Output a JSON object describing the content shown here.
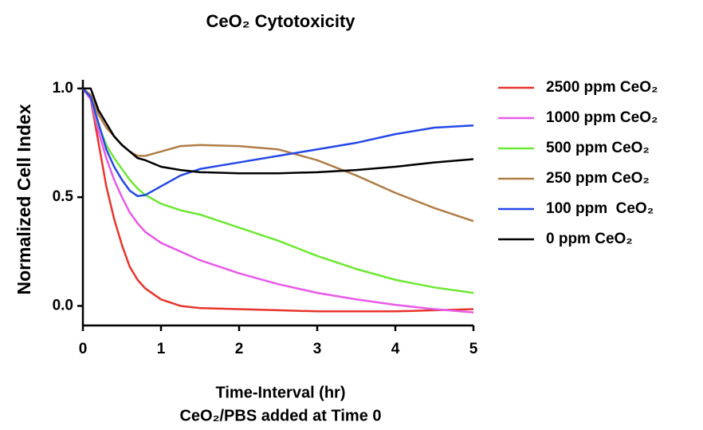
{
  "chart_data": {
    "type": "line",
    "title": "CeO₂ Cytotoxicity",
    "xlabel": [
      "Time-Interval (hr)",
      "CeO₂/PBS added at Time 0"
    ],
    "ylabel": "Normalized Cell Index",
    "x": [
      0,
      0.1,
      0.2,
      0.3,
      0.4,
      0.5,
      0.6,
      0.7,
      0.8,
      1.0,
      1.25,
      1.5,
      2,
      2.5,
      3,
      3.5,
      4,
      4.5,
      5
    ],
    "series": [
      {
        "name": "2500 ppm CeO₂",
        "color": "#e8352b",
        "values": [
          1.0,
          0.95,
          0.75,
          0.55,
          0.4,
          0.28,
          0.18,
          0.12,
          0.08,
          0.03,
          0.0,
          -0.01,
          -0.015,
          -0.02,
          -0.025,
          -0.025,
          -0.025,
          -0.02,
          -0.015
        ]
      },
      {
        "name": "1000 ppm CeO₂",
        "color": "#e85ae8",
        "values": [
          1.0,
          0.95,
          0.8,
          0.68,
          0.58,
          0.5,
          0.43,
          0.38,
          0.34,
          0.29,
          0.25,
          0.21,
          0.15,
          0.1,
          0.06,
          0.03,
          0.005,
          -0.015,
          -0.03
        ]
      },
      {
        "name": "500 ppm CeO₂",
        "color": "#6de832",
        "values": [
          1.0,
          0.96,
          0.83,
          0.74,
          0.68,
          0.63,
          0.58,
          0.54,
          0.51,
          0.47,
          0.44,
          0.42,
          0.36,
          0.3,
          0.23,
          0.17,
          0.12,
          0.085,
          0.06
        ]
      },
      {
        "name": "250 ppm CeO₂",
        "color": "#b07d48",
        "values": [
          1.0,
          0.97,
          0.88,
          0.82,
          0.78,
          0.74,
          0.71,
          0.69,
          0.69,
          0.71,
          0.735,
          0.74,
          0.735,
          0.72,
          0.67,
          0.6,
          0.52,
          0.45,
          0.39
        ]
      },
      {
        "name": "100 ppm  CeO₂",
        "color": "#2448e8",
        "values": [
          1.0,
          0.96,
          0.84,
          0.72,
          0.64,
          0.58,
          0.53,
          0.505,
          0.51,
          0.55,
          0.6,
          0.63,
          0.66,
          0.69,
          0.72,
          0.75,
          0.79,
          0.82,
          0.83
        ]
      },
      {
        "name": "0 ppm CeO₂",
        "color": "#000000",
        "values": [
          1.0,
          1.0,
          0.9,
          0.84,
          0.78,
          0.74,
          0.71,
          0.68,
          0.67,
          0.64,
          0.625,
          0.615,
          0.61,
          0.61,
          0.615,
          0.625,
          0.64,
          0.66,
          0.675
        ]
      }
    ],
    "xlim": [
      0,
      5
    ],
    "xticks": [
      0,
      1,
      2,
      3,
      4,
      5
    ],
    "ylim": [
      -0.09,
      1.04
    ],
    "yticks": [
      {
        "value": 0,
        "label": "0.0"
      },
      {
        "value": 0.5,
        "label": "0.5"
      },
      {
        "value": 1,
        "label": "1.0"
      }
    ],
    "grid": false,
    "legend": "right"
  }
}
